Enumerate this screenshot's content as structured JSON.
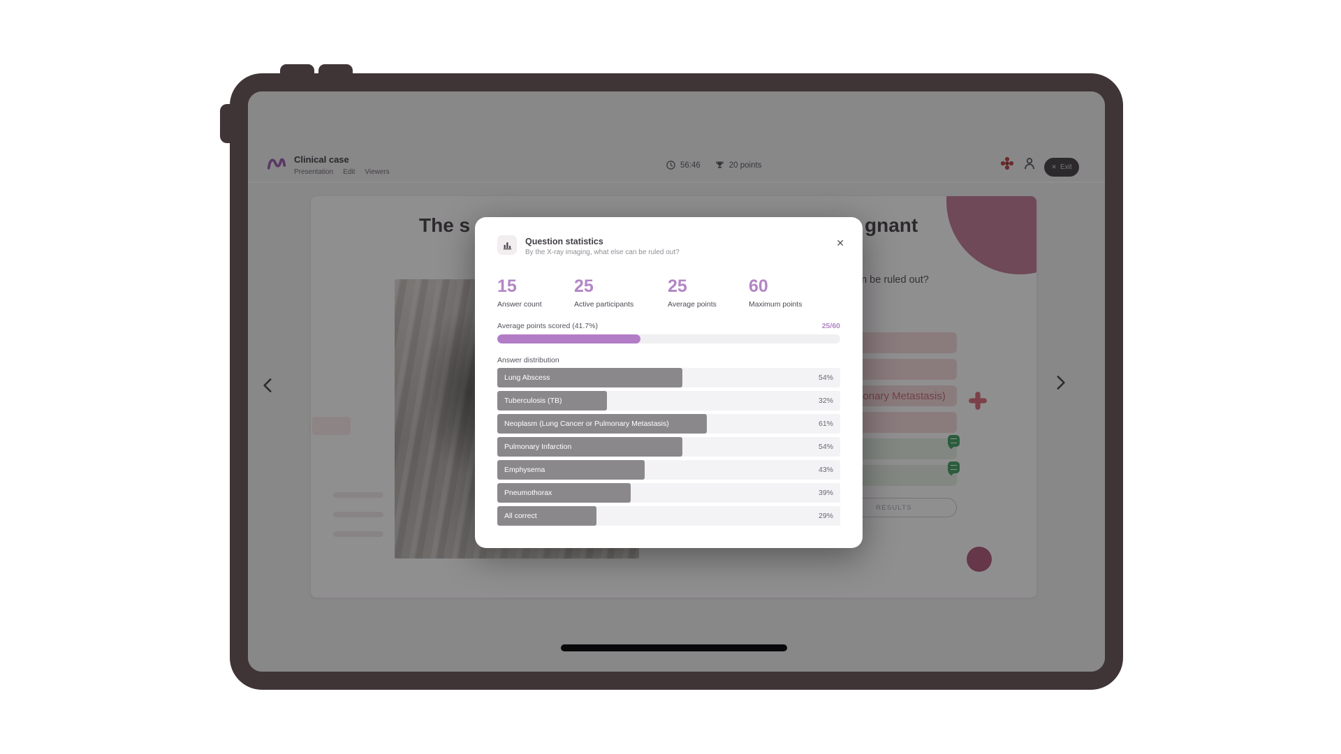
{
  "colors": {
    "accent_purple": "#b286c5",
    "progress_fill": "#b27cc6",
    "bar_fill": "#8b888c",
    "device_frame": "#3f3537",
    "pink_option": "#f5dadc",
    "green_option": "#e6f0e3",
    "badge_green": "#47a569",
    "decor_rose": "#c4809a",
    "decor_dot": "#b25e7e"
  },
  "header": {
    "title": "Clinical case",
    "tabs": [
      "Presentation",
      "Edit",
      "Viewers"
    ],
    "timer": "56:46",
    "points": "20 points",
    "exit": {
      "icon": "✕",
      "label": "Exit"
    }
  },
  "slide": {
    "title_fragment_left": "The s",
    "title_fragment_right": "gnant",
    "question_fragment": "an be ruled out?",
    "options": [
      {
        "label": "Lung Abscess",
        "type": "pink"
      },
      {
        "label": "Tuberculosis (TB)",
        "type": "pink"
      },
      {
        "label": "Neoplasm (Lung Cancer or Pulmonary Metastasis)",
        "type": "pink"
      },
      {
        "label": "Pulmonary Infarction",
        "type": "pink"
      },
      {
        "label": "Emphysema",
        "type": "green"
      },
      {
        "label": "Pneumothorax",
        "type": "green"
      }
    ],
    "results_button": "RESULTS"
  },
  "modal": {
    "title": "Question statistics",
    "subtitle": "By the X-ray imaging, what else can be ruled out?",
    "close_icon": "✕",
    "stats": [
      {
        "value": "15",
        "label": "Answer count"
      },
      {
        "value": "25",
        "label": "Active participants"
      },
      {
        "value": "25",
        "label": "Average points"
      },
      {
        "value": "60",
        "label": "Maximum points"
      }
    ],
    "progress": {
      "label": "Average points scored (41.7%)",
      "score": "25/60",
      "percent": 41.7
    },
    "distribution_title": "Answer distribution",
    "distribution": [
      {
        "label": "Lung Abscess",
        "percent": 54,
        "percent_label": "54%"
      },
      {
        "label": "Tuberculosis (TB)",
        "percent": 32,
        "percent_label": "32%"
      },
      {
        "label": "Neoplasm (Lung Cancer or Pulmonary Metastasis)",
        "percent": 61,
        "percent_label": "61%"
      },
      {
        "label": "Pulmonary Infarction",
        "percent": 54,
        "percent_label": "54%"
      },
      {
        "label": "Emphysema",
        "percent": 43,
        "percent_label": "43%"
      },
      {
        "label": "Pneumothorax",
        "percent": 39,
        "percent_label": "39%"
      },
      {
        "label": "All correct",
        "percent": 29,
        "percent_label": "29%"
      }
    ]
  },
  "chart_data": {
    "type": "bar",
    "title": "Answer distribution",
    "categories": [
      "Lung Abscess",
      "Tuberculosis (TB)",
      "Neoplasm (Lung Cancer or Pulmonary Metastasis)",
      "Pulmonary Infarction",
      "Emphysema",
      "Pneumothorax",
      "All correct"
    ],
    "values": [
      54,
      32,
      61,
      54,
      43,
      39,
      29
    ],
    "unit": "%"
  }
}
